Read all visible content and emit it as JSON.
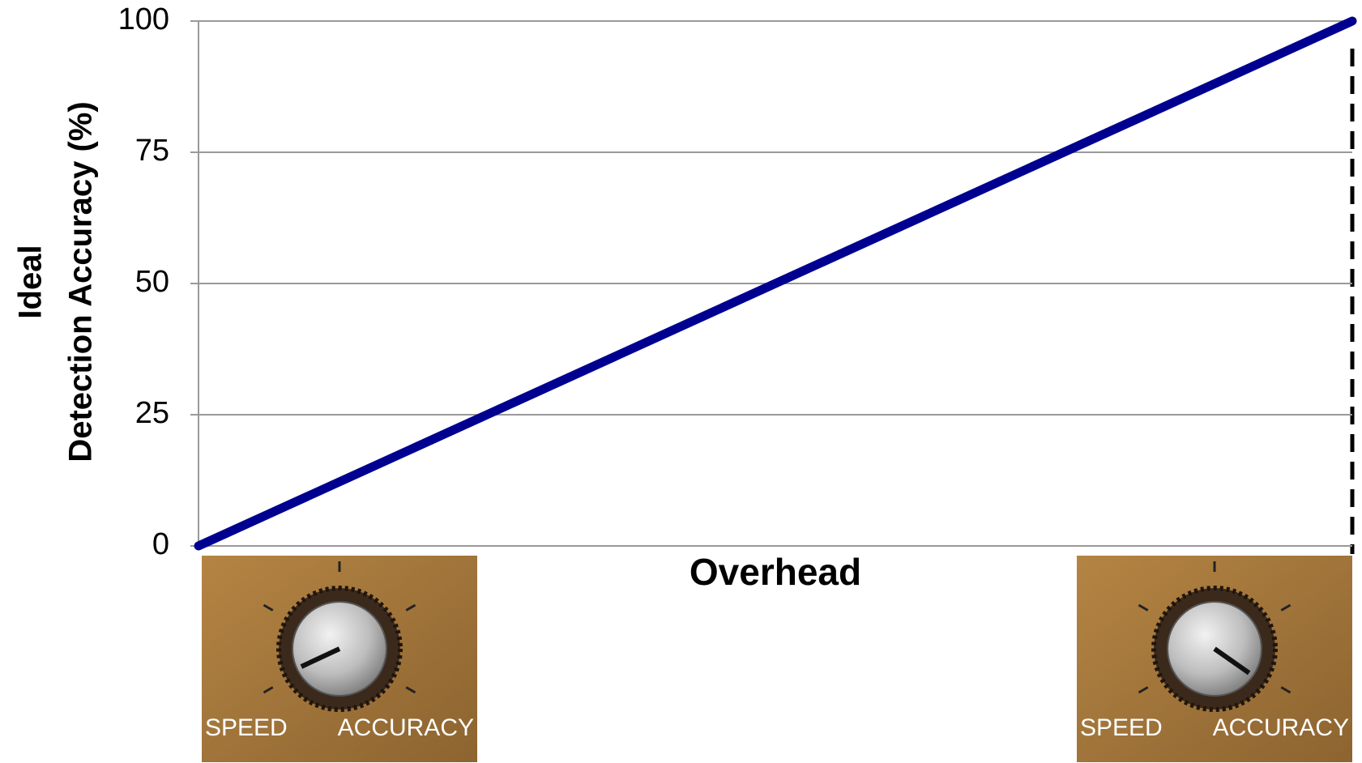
{
  "chart_data": {
    "type": "line",
    "y_label_lines": [
      "Ideal",
      "Detection Accuracy (%)"
    ],
    "x_label": "Overhead",
    "categories": [
      null,
      null
    ],
    "values": [
      0,
      100
    ],
    "color": "#000090",
    "ylim": [
      0,
      100
    ],
    "yticks": [
      0,
      25,
      50,
      75,
      100
    ],
    "grid": true
  },
  "knobs": [
    {
      "labels": [
        "SPEED",
        "ACCURACY"
      ],
      "setting": "SPEED"
    },
    {
      "labels": [
        "SPEED",
        "ACCURACY"
      ],
      "setting": "ACCURACY"
    }
  ]
}
